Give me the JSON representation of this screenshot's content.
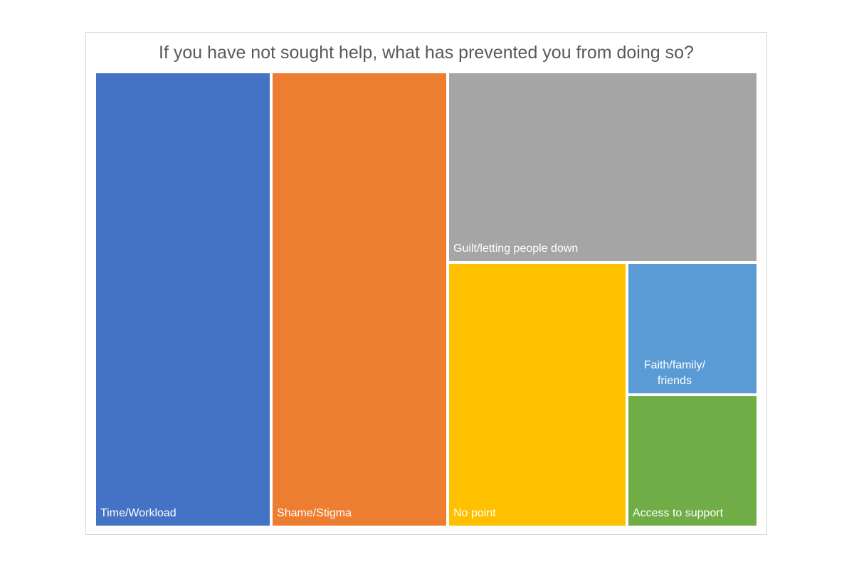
{
  "chart_data": {
    "type": "treemap",
    "title": "If you have not sought help, what has prevented you from doing so?",
    "items": [
      {
        "label": "Time/Workload",
        "value": 264,
        "color": "#4472C4"
      },
      {
        "label": "Shame/Stigma",
        "value": 264,
        "color": "#ED7D31"
      },
      {
        "label": "Guilt/letting people down",
        "value": 194,
        "color": "#A5A5A5"
      },
      {
        "label": "No point",
        "value": 156,
        "color": "#FFC000"
      },
      {
        "label": "Faith/family/ friends",
        "value": 57,
        "color": "#5B9BD5"
      },
      {
        "label": "Access to support",
        "value": 57,
        "color": "#70AD47"
      }
    ]
  }
}
